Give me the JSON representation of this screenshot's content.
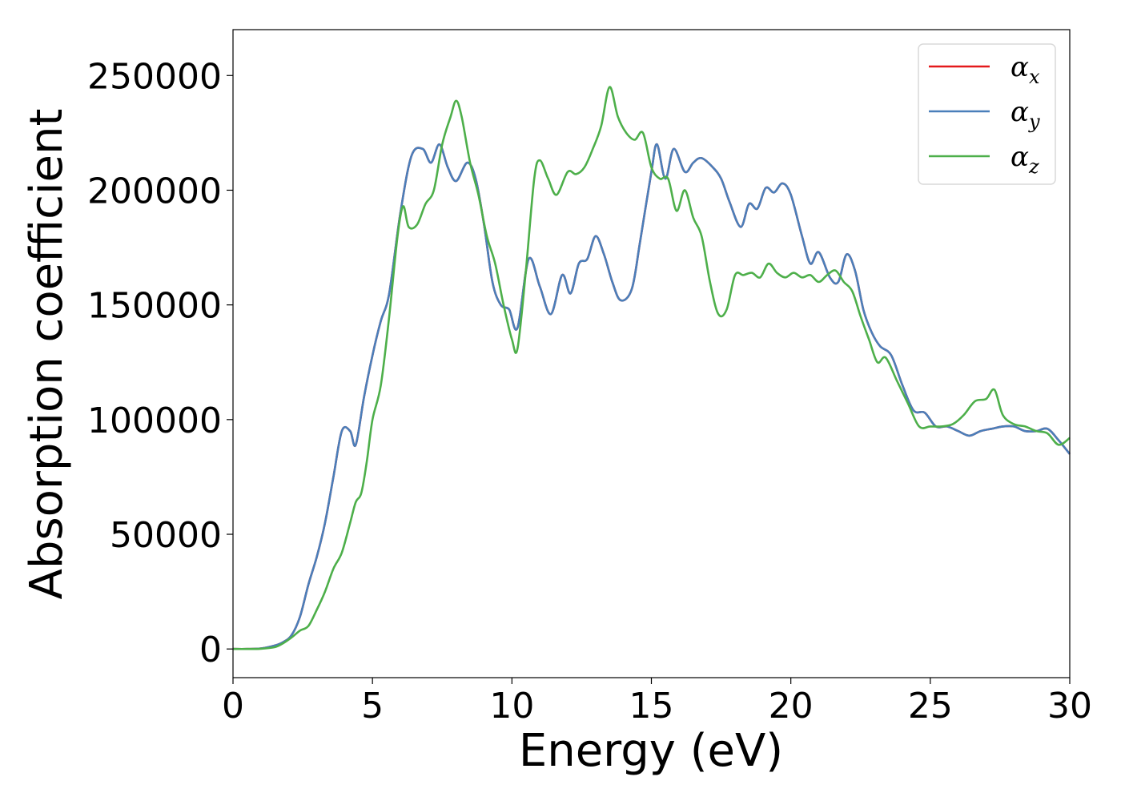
{
  "chart_data": {
    "type": "line",
    "xlabel": "Energy (eV)",
    "ylabel": "Absorption coefficient",
    "xlim": [
      0,
      30
    ],
    "ylim": [
      -12500,
      270000
    ],
    "x_ticks": [
      0,
      5,
      10,
      15,
      20,
      25,
      30
    ],
    "y_ticks": [
      0,
      50000,
      100000,
      150000,
      200000,
      250000
    ],
    "grid": false,
    "legend_position": "top-right",
    "series": [
      {
        "name": "α_x",
        "legend_main": "α",
        "legend_sub": "x",
        "color": "#e41a1c",
        "x": [
          0,
          0.5,
          1,
          1.5,
          1.8,
          2.1,
          2.4,
          2.7,
          3.0,
          3.3,
          3.6,
          3.9,
          4.2,
          4.4,
          4.7,
          5.0,
          5.3,
          5.6,
          6.0,
          6.4,
          6.8,
          7.1,
          7.4,
          7.7,
          8.0,
          8.4,
          8.7,
          9.0,
          9.3,
          9.6,
          9.9,
          10.2,
          10.6,
          11.0,
          11.4,
          11.8,
          12.1,
          12.4,
          12.7,
          13.0,
          13.3,
          13.6,
          13.9,
          14.3,
          14.6,
          15.0,
          15.2,
          15.5,
          15.8,
          16.2,
          16.5,
          16.8,
          17.2,
          17.5,
          17.8,
          18.2,
          18.5,
          18.8,
          19.1,
          19.4,
          19.7,
          20.0,
          20.4,
          20.7,
          21.0,
          21.4,
          21.7,
          22.0,
          22.3,
          22.6,
          22.9,
          23.2,
          23.6,
          24.0,
          24.4,
          24.8,
          25.2,
          25.6,
          26.0,
          26.4,
          26.8,
          27.2,
          27.6,
          28.0,
          28.4,
          28.8,
          29.2,
          29.6,
          30.0
        ],
        "y": [
          0,
          0,
          200,
          1500,
          3000,
          6000,
          14000,
          28000,
          40000,
          55000,
          75000,
          95000,
          95000,
          89000,
          110000,
          128000,
          143000,
          155000,
          190000,
          215000,
          218000,
          212000,
          220000,
          210000,
          204000,
          212000,
          205000,
          185000,
          160000,
          150000,
          148000,
          140000,
          170000,
          158000,
          146000,
          163000,
          155000,
          168000,
          170000,
          180000,
          172000,
          160000,
          152000,
          157000,
          178000,
          208000,
          220000,
          205000,
          218000,
          208000,
          212000,
          214000,
          210000,
          205000,
          195000,
          184000,
          194000,
          192000,
          201000,
          199000,
          203000,
          198000,
          180000,
          168000,
          173000,
          162000,
          160000,
          172000,
          165000,
          148000,
          138000,
          132000,
          128000,
          115000,
          104000,
          103000,
          97000,
          97000,
          95000,
          93000,
          95000,
          96000,
          97000,
          97000,
          95000,
          95000,
          96000,
          91000,
          85000
        ]
      },
      {
        "name": "α_y",
        "legend_main": "α",
        "legend_sub": "y",
        "color": "#4a7fba",
        "x": [
          0,
          0.5,
          1,
          1.5,
          1.8,
          2.1,
          2.4,
          2.7,
          3.0,
          3.3,
          3.6,
          3.9,
          4.2,
          4.4,
          4.7,
          5.0,
          5.3,
          5.6,
          6.0,
          6.4,
          6.8,
          7.1,
          7.4,
          7.7,
          8.0,
          8.4,
          8.7,
          9.0,
          9.3,
          9.6,
          9.9,
          10.2,
          10.6,
          11.0,
          11.4,
          11.8,
          12.1,
          12.4,
          12.7,
          13.0,
          13.3,
          13.6,
          13.9,
          14.3,
          14.6,
          15.0,
          15.2,
          15.5,
          15.8,
          16.2,
          16.5,
          16.8,
          17.2,
          17.5,
          17.8,
          18.2,
          18.5,
          18.8,
          19.1,
          19.4,
          19.7,
          20.0,
          20.4,
          20.7,
          21.0,
          21.4,
          21.7,
          22.0,
          22.3,
          22.6,
          22.9,
          23.2,
          23.6,
          24.0,
          24.4,
          24.8,
          25.2,
          25.6,
          26.0,
          26.4,
          26.8,
          27.2,
          27.6,
          28.0,
          28.4,
          28.8,
          29.2,
          29.6,
          30.0
        ],
        "y": [
          0,
          0,
          200,
          1500,
          3000,
          6000,
          14000,
          28000,
          40000,
          55000,
          75000,
          95000,
          95000,
          89000,
          110000,
          128000,
          143000,
          155000,
          190000,
          215000,
          218000,
          212000,
          220000,
          210000,
          204000,
          212000,
          205000,
          185000,
          160000,
          150000,
          148000,
          140000,
          170000,
          158000,
          146000,
          163000,
          155000,
          168000,
          170000,
          180000,
          172000,
          160000,
          152000,
          157000,
          178000,
          208000,
          220000,
          205000,
          218000,
          208000,
          212000,
          214000,
          210000,
          205000,
          195000,
          184000,
          194000,
          192000,
          201000,
          199000,
          203000,
          198000,
          180000,
          168000,
          173000,
          162000,
          160000,
          172000,
          165000,
          148000,
          138000,
          132000,
          128000,
          115000,
          104000,
          103000,
          97000,
          97000,
          95000,
          93000,
          95000,
          96000,
          97000,
          97000,
          95000,
          95000,
          96000,
          91000,
          85000
        ]
      },
      {
        "name": "α_z",
        "legend_main": "α",
        "legend_sub": "z",
        "color": "#4daf4a",
        "x": [
          0,
          0.5,
          1,
          1.5,
          1.8,
          2.1,
          2.4,
          2.7,
          3.0,
          3.3,
          3.6,
          3.9,
          4.2,
          4.4,
          4.6,
          4.8,
          5.0,
          5.3,
          5.6,
          5.9,
          6.1,
          6.3,
          6.6,
          6.9,
          7.2,
          7.5,
          7.8,
          8.0,
          8.2,
          8.5,
          8.8,
          9.1,
          9.4,
          9.7,
          10.0,
          10.2,
          10.5,
          10.8,
          11.0,
          11.3,
          11.6,
          12.0,
          12.3,
          12.6,
          12.9,
          13.2,
          13.5,
          13.8,
          14.1,
          14.4,
          14.7,
          15.0,
          15.3,
          15.6,
          15.9,
          16.2,
          16.5,
          16.8,
          17.1,
          17.4,
          17.7,
          18.0,
          18.3,
          18.6,
          18.9,
          19.2,
          19.5,
          19.8,
          20.1,
          20.4,
          20.7,
          21.0,
          21.3,
          21.6,
          21.9,
          22.2,
          22.5,
          22.8,
          23.1,
          23.4,
          23.8,
          24.2,
          24.6,
          25.0,
          25.4,
          25.8,
          26.2,
          26.6,
          27.0,
          27.3,
          27.6,
          28.0,
          28.4,
          28.8,
          29.2,
          29.6,
          30.0
        ],
        "y": [
          0,
          0,
          100,
          800,
          2500,
          5000,
          8000,
          10000,
          17000,
          25000,
          35000,
          42000,
          55000,
          64000,
          68000,
          82000,
          100000,
          115000,
          145000,
          180000,
          193000,
          184000,
          185000,
          194000,
          200000,
          220000,
          232000,
          239000,
          232000,
          212000,
          198000,
          180000,
          168000,
          150000,
          135000,
          131000,
          165000,
          205000,
          213000,
          205000,
          198000,
          208000,
          207000,
          210000,
          218000,
          228000,
          245000,
          232000,
          225000,
          222000,
          225000,
          210000,
          205000,
          205000,
          191000,
          200000,
          188000,
          180000,
          160000,
          146000,
          148000,
          163000,
          163000,
          164000,
          162000,
          168000,
          164000,
          162000,
          164000,
          162000,
          163000,
          160000,
          163000,
          165000,
          160000,
          156000,
          145000,
          135000,
          125000,
          127000,
          117000,
          107000,
          97000,
          97000,
          97000,
          98000,
          102000,
          108000,
          109000,
          113000,
          102000,
          98000,
          97000,
          95000,
          94000,
          89000,
          92000
        ]
      }
    ]
  }
}
